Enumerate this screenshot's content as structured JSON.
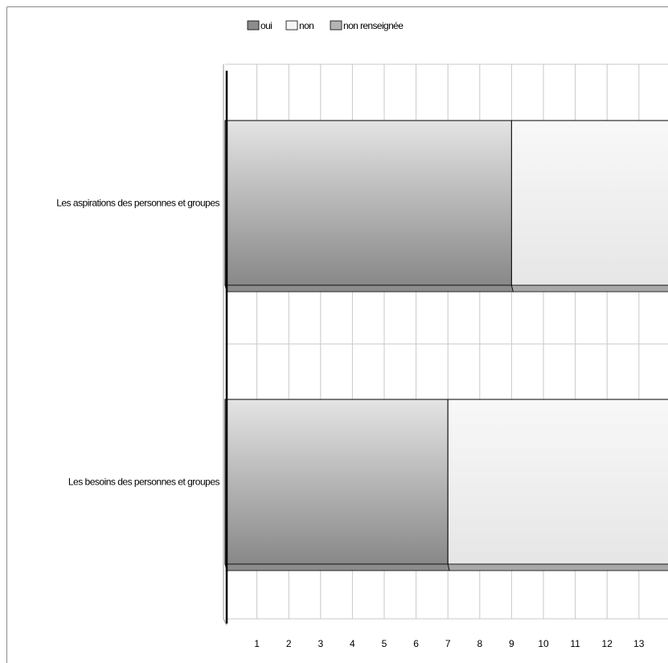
{
  "chart_data": {
    "type": "bar",
    "orientation": "horizontal",
    "stacked": true,
    "title": "",
    "categories": [
      "Les besoins des personnes et groupes",
      "Les aspirations des personnes et groupes"
    ],
    "series": [
      {
        "name": "oui",
        "values": [
          7,
          9
        ]
      },
      {
        "name": "non",
        "values": [
          7,
          5
        ]
      },
      {
        "name": "non renseignée",
        "values": [
          0,
          0
        ]
      }
    ],
    "x_ticks": [
      "1",
      "2",
      "3",
      "4",
      "5",
      "6",
      "7",
      "8",
      "9",
      "10",
      "11",
      "12",
      "13"
    ],
    "xlim": [
      0,
      14
    ],
    "grid": true,
    "legend_position": "top",
    "colors": {
      "oui": "#8c8c8c",
      "non": "#f0f0f0",
      "non renseignée": "#b4b4b4",
      "grid": "#c8c8c8",
      "axis": "#000000"
    }
  }
}
